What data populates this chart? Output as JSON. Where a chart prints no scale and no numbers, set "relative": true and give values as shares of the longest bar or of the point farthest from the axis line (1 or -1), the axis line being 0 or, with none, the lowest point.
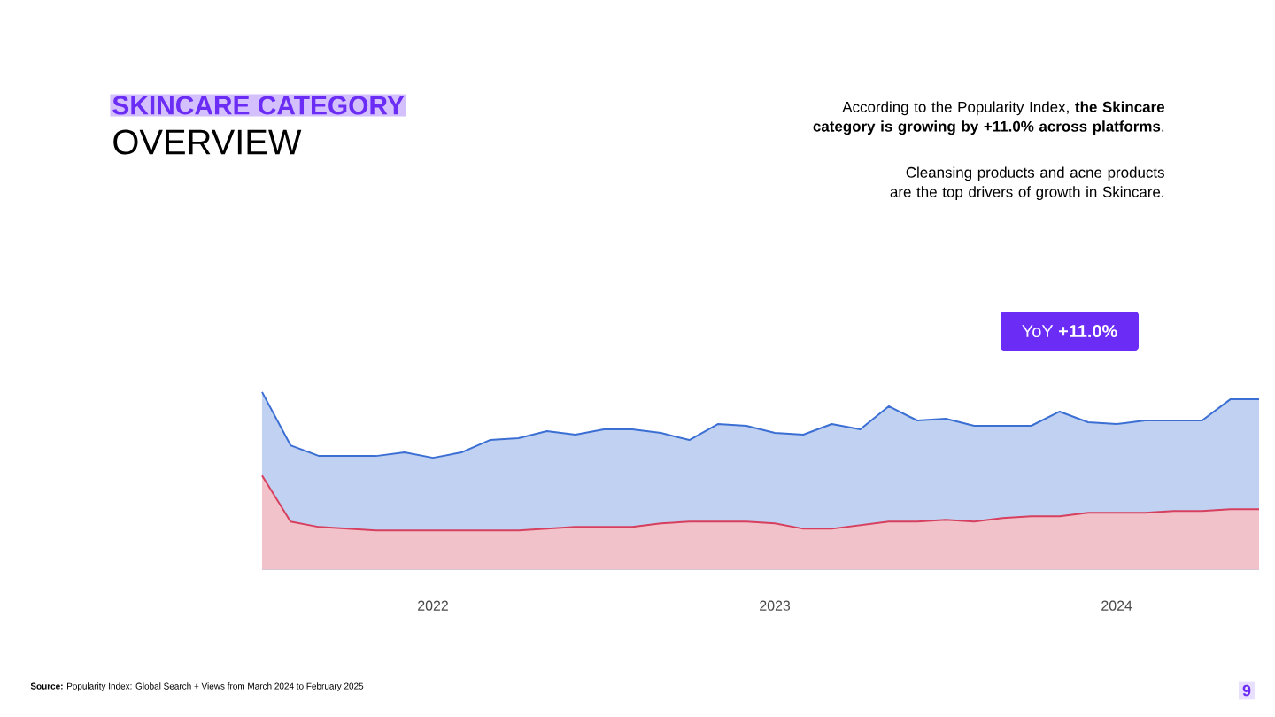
{
  "chart_data": {
    "type": "area",
    "title": "SKINCARE CATEGORY",
    "subtitle": "OVERVIEW",
    "annotations": [
      "According to the Popularity Index, **the Skincare category is growing by +11.0% across platforms**.",
      "Cleansing products and acne products are the top drivers of growth in Skincare.",
      "YoY **+11.0%**",
      "**Source:** Popularity Index: Global Search + Views from March 2024 to February 2025",
      "9"
    ],
    "relative": true,
    "x": [
      "2021-07",
      "2021-08",
      "2021-09",
      "2021-10",
      "2021-11",
      "2021-12",
      "2022-01",
      "2022-02",
      "2022-03",
      "2022-04",
      "2022-05",
      "2022-06",
      "2022-07",
      "2022-08",
      "2022-09",
      "2022-10",
      "2022-11",
      "2022-12",
      "2023-01",
      "2023-02",
      "2023-03",
      "2023-04",
      "2023-05",
      "2023-06",
      "2023-07",
      "2023-08",
      "2023-09",
      "2023-10",
      "2023-11",
      "2023-12",
      "2024-01",
      "2024-02",
      "2024-03",
      "2024-04",
      "2024-05",
      "2024-06"
    ],
    "xlim": [
      "2021-07",
      "2024-06"
    ],
    "xticks": [
      "2022",
      "2023",
      "2024"
    ],
    "series": [
      {
        "color": "#3b6fd4",
        "values": [
          1.0,
          0.7,
          0.64,
          0.64,
          0.64,
          0.66,
          0.63,
          0.66,
          0.73,
          0.74,
          0.78,
          0.76,
          0.79,
          0.79,
          0.77,
          0.73,
          0.82,
          0.81,
          0.77,
          0.76,
          0.82,
          0.79,
          0.92,
          0.84,
          0.85,
          0.81,
          0.81,
          0.81,
          0.89,
          0.83,
          0.82,
          0.84,
          0.84,
          0.84,
          0.96,
          0.96
        ]
      },
      {
        "color": "#d6405e",
        "values": [
          0.53,
          0.27,
          0.24,
          0.23,
          0.22,
          0.22,
          0.22,
          0.22,
          0.22,
          0.22,
          0.23,
          0.24,
          0.24,
          0.24,
          0.26,
          0.27,
          0.27,
          0.27,
          0.26,
          0.23,
          0.23,
          0.25,
          0.27,
          0.27,
          0.28,
          0.27,
          0.29,
          0.3,
          0.3,
          0.32,
          0.32,
          0.32,
          0.33,
          0.33,
          0.34,
          0.34
        ]
      }
    ]
  }
}
